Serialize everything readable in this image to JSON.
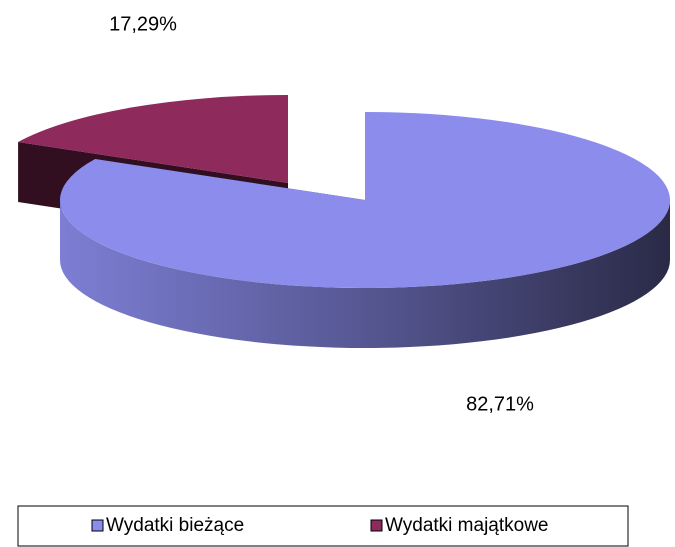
{
  "chart_data": {
    "type": "pie",
    "categories": [
      "Wydatki bieżące",
      "Wydatki majątkowe"
    ],
    "values": [
      82.71,
      17.29
    ],
    "value_labels": [
      "82,71%",
      "17,29%"
    ],
    "colors": [
      "#8b8cec",
      "#8e2b5c"
    ],
    "legend": "bottom"
  }
}
